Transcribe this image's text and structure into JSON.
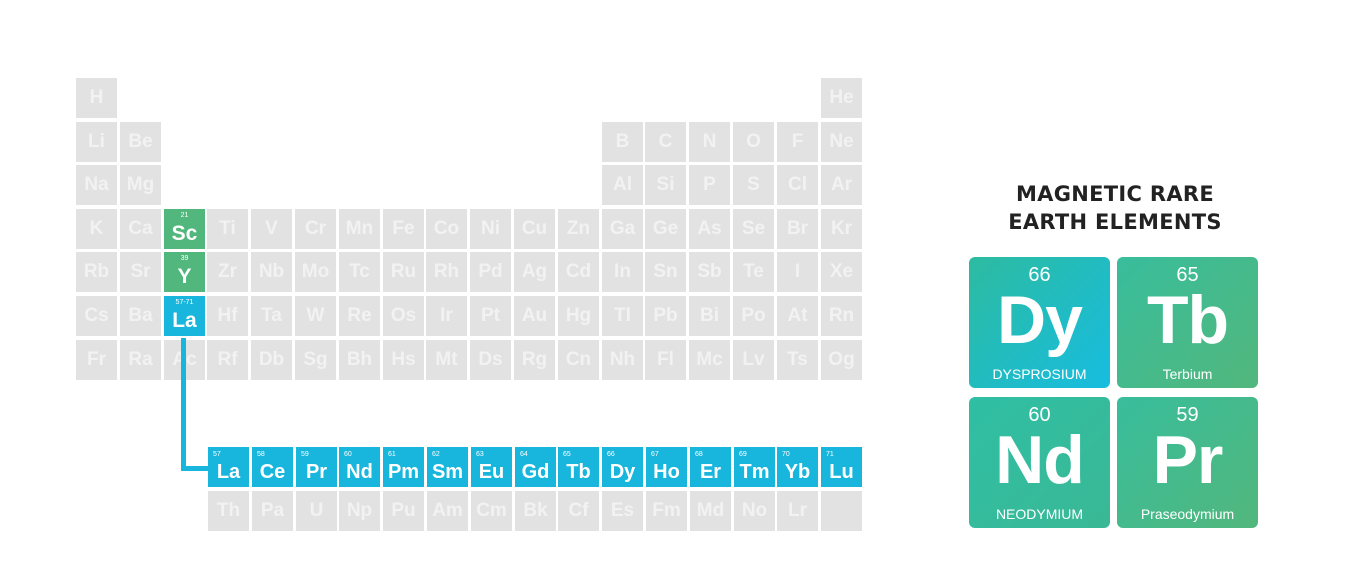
{
  "periodic_table": {
    "rows": [
      [
        {
          "col": 1,
          "sym": "H"
        },
        {
          "col": 18,
          "sym": "He"
        }
      ],
      [
        {
          "col": 1,
          "sym": "Li"
        },
        {
          "col": 2,
          "sym": "Be"
        },
        {
          "col": 13,
          "sym": "B"
        },
        {
          "col": 14,
          "sym": "C"
        },
        {
          "col": 15,
          "sym": "N"
        },
        {
          "col": 16,
          "sym": "O"
        },
        {
          "col": 17,
          "sym": "F"
        },
        {
          "col": 18,
          "sym": "Ne"
        }
      ],
      [
        {
          "col": 1,
          "sym": "Na"
        },
        {
          "col": 2,
          "sym": "Mg"
        },
        {
          "col": 13,
          "sym": "Al"
        },
        {
          "col": 14,
          "sym": "Si"
        },
        {
          "col": 15,
          "sym": "P"
        },
        {
          "col": 16,
          "sym": "S"
        },
        {
          "col": 17,
          "sym": "Cl"
        },
        {
          "col": 18,
          "sym": "Ar"
        }
      ],
      [
        {
          "col": 1,
          "sym": "K"
        },
        {
          "col": 2,
          "sym": "Ca"
        },
        {
          "col": 3,
          "sym": "Sc",
          "num": "21",
          "hl": "green"
        },
        {
          "col": 4,
          "sym": "Ti"
        },
        {
          "col": 5,
          "sym": "V"
        },
        {
          "col": 6,
          "sym": "Cr"
        },
        {
          "col": 7,
          "sym": "Mn"
        },
        {
          "col": 8,
          "sym": "Fe"
        },
        {
          "col": 9,
          "sym": "Co"
        },
        {
          "col": 10,
          "sym": "Ni"
        },
        {
          "col": 11,
          "sym": "Cu"
        },
        {
          "col": 12,
          "sym": "Zn"
        },
        {
          "col": 13,
          "sym": "Ga"
        },
        {
          "col": 14,
          "sym": "Ge"
        },
        {
          "col": 15,
          "sym": "As"
        },
        {
          "col": 16,
          "sym": "Se"
        },
        {
          "col": 17,
          "sym": "Br"
        },
        {
          "col": 18,
          "sym": "Kr"
        }
      ],
      [
        {
          "col": 1,
          "sym": "Rb"
        },
        {
          "col": 2,
          "sym": "Sr"
        },
        {
          "col": 3,
          "sym": "Y",
          "num": "39",
          "hl": "green"
        },
        {
          "col": 4,
          "sym": "Zr"
        },
        {
          "col": 5,
          "sym": "Nb"
        },
        {
          "col": 6,
          "sym": "Mo"
        },
        {
          "col": 7,
          "sym": "Tc"
        },
        {
          "col": 8,
          "sym": "Ru"
        },
        {
          "col": 9,
          "sym": "Rh"
        },
        {
          "col": 10,
          "sym": "Pd"
        },
        {
          "col": 11,
          "sym": "Ag"
        },
        {
          "col": 12,
          "sym": "Cd"
        },
        {
          "col": 13,
          "sym": "In"
        },
        {
          "col": 14,
          "sym": "Sn"
        },
        {
          "col": 15,
          "sym": "Sb"
        },
        {
          "col": 16,
          "sym": "Te"
        },
        {
          "col": 17,
          "sym": "I"
        },
        {
          "col": 18,
          "sym": "Xe"
        }
      ],
      [
        {
          "col": 1,
          "sym": "Cs"
        },
        {
          "col": 2,
          "sym": "Ba"
        },
        {
          "col": 3,
          "sym": "La",
          "num": "57-71",
          "hl": "blue"
        },
        {
          "col": 4,
          "sym": "Hf"
        },
        {
          "col": 5,
          "sym": "Ta"
        },
        {
          "col": 6,
          "sym": "W"
        },
        {
          "col": 7,
          "sym": "Re"
        },
        {
          "col": 8,
          "sym": "Os"
        },
        {
          "col": 9,
          "sym": "Ir"
        },
        {
          "col": 10,
          "sym": "Pt"
        },
        {
          "col": 11,
          "sym": "Au"
        },
        {
          "col": 12,
          "sym": "Hg"
        },
        {
          "col": 13,
          "sym": "Tl"
        },
        {
          "col": 14,
          "sym": "Pb"
        },
        {
          "col": 15,
          "sym": "Bi"
        },
        {
          "col": 16,
          "sym": "Po"
        },
        {
          "col": 17,
          "sym": "At"
        },
        {
          "col": 18,
          "sym": "Rn"
        }
      ],
      [
        {
          "col": 1,
          "sym": "Fr"
        },
        {
          "col": 2,
          "sym": "Ra"
        },
        {
          "col": 3,
          "sym": "Ac"
        },
        {
          "col": 4,
          "sym": "Rf"
        },
        {
          "col": 5,
          "sym": "Db"
        },
        {
          "col": 6,
          "sym": "Sg"
        },
        {
          "col": 7,
          "sym": "Bh"
        },
        {
          "col": 8,
          "sym": "Hs"
        },
        {
          "col": 9,
          "sym": "Mt"
        },
        {
          "col": 10,
          "sym": "Ds"
        },
        {
          "col": 11,
          "sym": "Rg"
        },
        {
          "col": 12,
          "sym": "Cn"
        },
        {
          "col": 13,
          "sym": "Nh"
        },
        {
          "col": 14,
          "sym": "Fl"
        },
        {
          "col": 15,
          "sym": "Mc"
        },
        {
          "col": 16,
          "sym": "Lv"
        },
        {
          "col": 17,
          "sym": "Ts"
        },
        {
          "col": 18,
          "sym": "Og"
        }
      ]
    ],
    "lanthanides": [
      {
        "sym": "La",
        "num": "57"
      },
      {
        "sym": "Ce",
        "num": "58"
      },
      {
        "sym": "Pr",
        "num": "59"
      },
      {
        "sym": "Nd",
        "num": "60"
      },
      {
        "sym": "Pm",
        "num": "61"
      },
      {
        "sym": "Sm",
        "num": "62"
      },
      {
        "sym": "Eu",
        "num": "63"
      },
      {
        "sym": "Gd",
        "num": "64"
      },
      {
        "sym": "Tb",
        "num": "65"
      },
      {
        "sym": "Dy",
        "num": "66"
      },
      {
        "sym": "Ho",
        "num": "67"
      },
      {
        "sym": "Er",
        "num": "68"
      },
      {
        "sym": "Tm",
        "num": "69"
      },
      {
        "sym": "Yb",
        "num": "70"
      },
      {
        "sym": "Lu",
        "num": "71"
      }
    ],
    "actinides": [
      "Th",
      "Pa",
      "U",
      "Np",
      "Pu",
      "Am",
      "Cm",
      "Bk",
      "Cf",
      "Es",
      "Fm",
      "Md",
      "No",
      "Lr",
      ""
    ],
    "colors": {
      "grey": "#e2e2e2",
      "green": "#52b77c",
      "blue": "#18b6dd",
      "grey_text": "#f2f2f2"
    }
  },
  "panel": {
    "title_line1": "MAGNETIC RARE",
    "title_line2": "EARTH ELEMENTS",
    "cards": {
      "dy": {
        "number": "66",
        "symbol": "Dy",
        "name": "DYSPROSIUM"
      },
      "tb": {
        "number": "65",
        "symbol": "Tb",
        "name": "Terbium"
      },
      "nd": {
        "number": "60",
        "symbol": "Nd",
        "name": "NEODYMIUM"
      },
      "pr": {
        "number": "59",
        "symbol": "Pr",
        "name": "Praseodymium"
      }
    }
  }
}
